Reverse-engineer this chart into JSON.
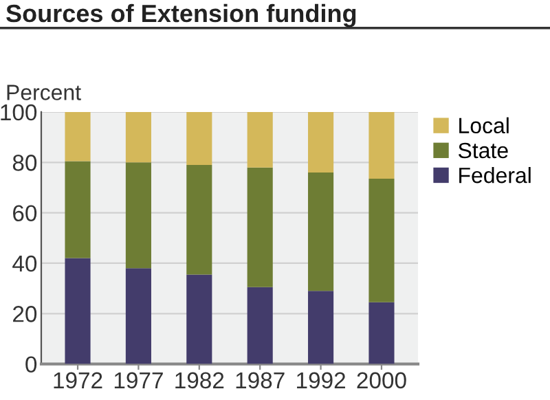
{
  "chart_data": {
    "type": "bar",
    "title": "Sources of Extension funding",
    "ylabel": "Percent",
    "stacked": true,
    "categories": [
      "1972",
      "1977",
      "1982",
      "1987",
      "1992",
      "2000"
    ],
    "series": [
      {
        "name": "Federal",
        "color": "#433c6b",
        "values": [
          42,
          38,
          35.5,
          30.5,
          29,
          24.5
        ]
      },
      {
        "name": "State",
        "color": "#6e7d34",
        "values": [
          38.5,
          42,
          43.5,
          47.5,
          47,
          49
        ]
      },
      {
        "name": "Local",
        "color": "#d4b85a",
        "values": [
          19.5,
          20,
          21,
          22,
          24,
          26.5
        ]
      }
    ],
    "ylim": [
      0,
      100
    ],
    "yticks": [
      0,
      20,
      40,
      60,
      80,
      100
    ],
    "grid": "y",
    "legend": "top right"
  }
}
